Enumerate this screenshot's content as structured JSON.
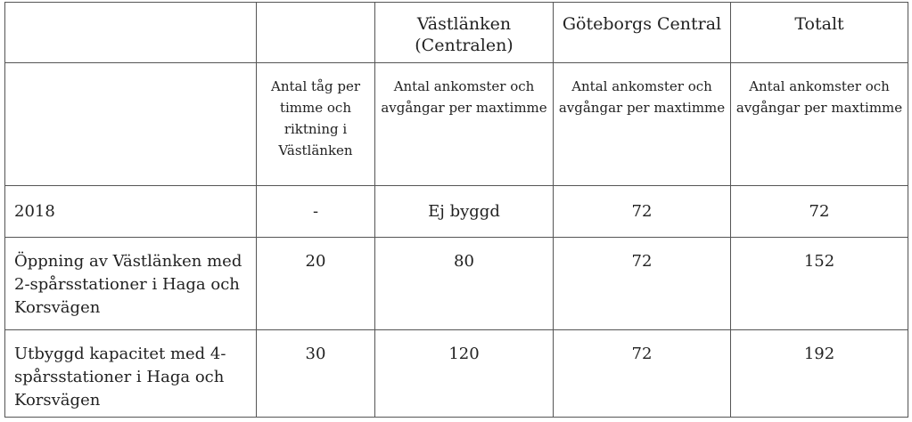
{
  "table": {
    "header_row1": [
      "",
      "",
      "Västlänken (Centralen)",
      "Göteborgs Central",
      "Totalt"
    ],
    "header_row2": [
      "",
      "Antal tåg per timme och riktning i Västlänken",
      "Antal ankomster och avgångar per maxtimme",
      "Antal ankomster och avgångar per maxtimme",
      "Antal ankomster och avgångar per maxtimme"
    ],
    "rows": [
      [
        "2018",
        "-",
        "Ej byggd",
        "72",
        "72"
      ],
      [
        "Öppning av Västlänken med 2-spårsstationer i Haga och Korsvägen",
        "20",
        "80",
        "72",
        "152"
      ],
      [
        "Utbyggd kapacitet med 4-spårsstationer i Haga och Korsvägen",
        "30",
        "120",
        "72",
        "192"
      ]
    ]
  }
}
